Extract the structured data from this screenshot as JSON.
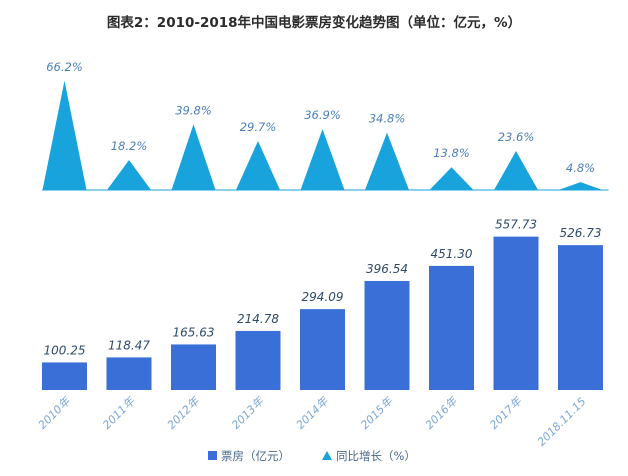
{
  "chart_data": {
    "type": "bar",
    "title": "图表2：2010-2018年中国电影票房变化趋势图（单位：亿元，%）",
    "categories": [
      "2010年",
      "2011年",
      "2012年",
      "2013年",
      "2014年",
      "2015年",
      "2016年",
      "2017年",
      "2018.11.15"
    ],
    "series": [
      {
        "name": "票房（亿元）",
        "chart_type": "bar",
        "values": [
          100.25,
          118.47,
          165.63,
          214.78,
          294.09,
          396.54,
          451.3,
          557.73,
          526.73
        ],
        "labels": [
          "100.25",
          "118.47",
          "165.63",
          "214.78",
          "294.09",
          "396.54",
          "451.30",
          "557.73",
          "526.73"
        ],
        "color": "#3a6fd8"
      },
      {
        "name": "同比增长（%）",
        "chart_type": "triangle",
        "values": [
          66.2,
          18.2,
          39.8,
          29.7,
          36.9,
          34.8,
          13.8,
          23.6,
          4.8
        ],
        "labels": [
          "66.2%",
          "18.2%",
          "39.8%",
          "29.7%",
          "36.9%",
          "34.8%",
          "13.8%",
          "23.6%",
          "4.8%"
        ],
        "color": "#19a3dc"
      }
    ],
    "legend_position": "bottom",
    "grid": false
  }
}
